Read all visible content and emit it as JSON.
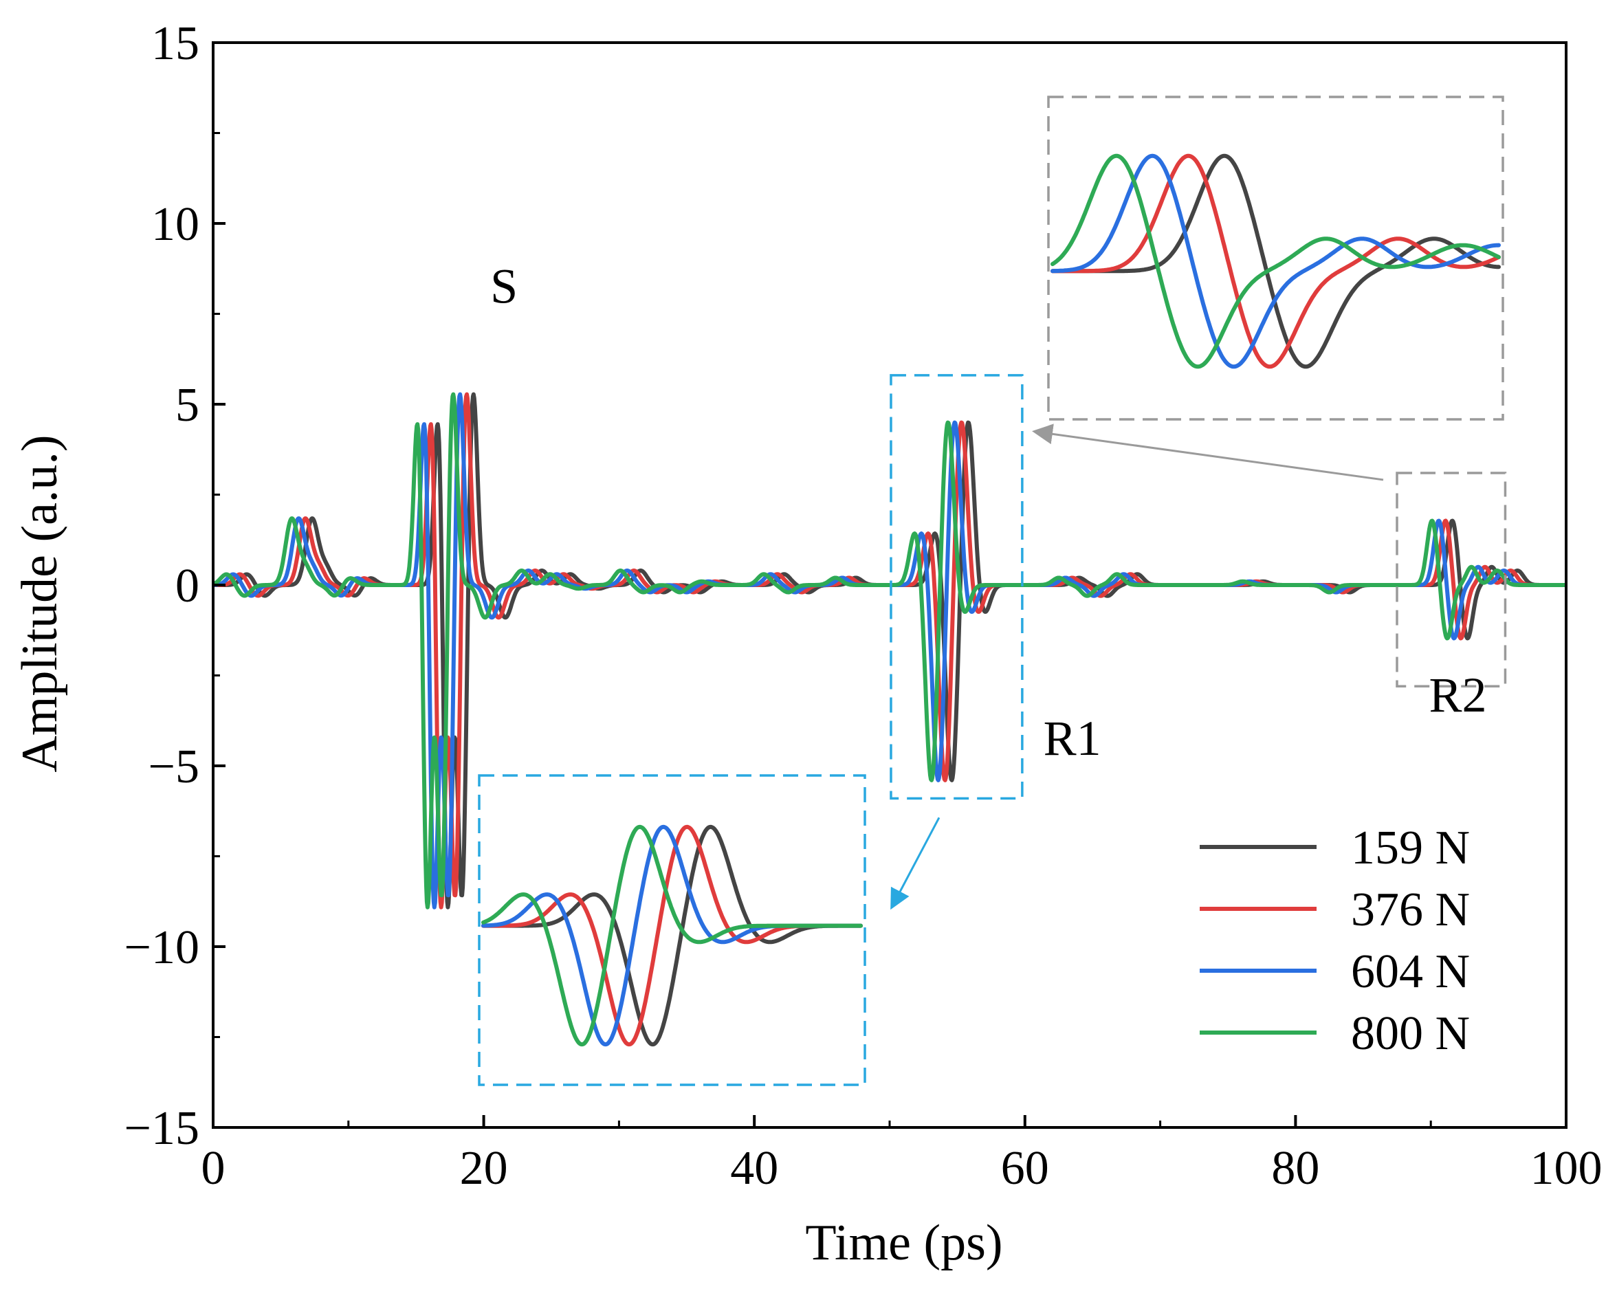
{
  "chart_data": {
    "type": "line",
    "xlabel": "Time (ps)",
    "ylabel": "Amplitude (a.u.)",
    "xlim": [
      0,
      100
    ],
    "ylim": [
      -15,
      15
    ],
    "xticks": [
      0,
      20,
      40,
      60,
      80,
      100
    ],
    "yticks": [
      -15,
      -10,
      -5,
      0,
      5,
      10,
      15
    ],
    "xtick_labels": [
      "0",
      "20",
      "40",
      "60",
      "80",
      "100"
    ],
    "ytick_labels": [
      "−15",
      "−10",
      "−5",
      "0",
      "5",
      "10",
      "15"
    ],
    "legend_position": "bottom-right",
    "series": [
      {
        "name": "159 N",
        "color": "#444444",
        "shift": 0.0
      },
      {
        "name": "376 N",
        "color": "#e03c3c",
        "shift": -0.5
      },
      {
        "name": "604 N",
        "color": "#2a6fe0",
        "shift": -1.0
      },
      {
        "name": "800 N",
        "color": "#2eaa55",
        "shift": -1.5
      }
    ],
    "features": [
      {
        "label": "S",
        "peaks": [
          [
            16.7,
            5.6
          ],
          [
            17.3,
            -9.7
          ],
          [
            18.4,
            -8.8
          ],
          [
            19.2,
            5.6
          ]
        ]
      },
      {
        "label": "R1",
        "peaks": [
          [
            53.4,
            1.5
          ],
          [
            54.6,
            -5.5
          ],
          [
            55.8,
            4.6
          ],
          [
            57.0,
            -0.8
          ]
        ]
      },
      {
        "label": "R2",
        "peaks": [
          [
            91.6,
            1.8
          ],
          [
            92.7,
            -1.5
          ],
          [
            94.5,
            0.5
          ]
        ]
      }
    ],
    "annotations": [
      {
        "text": "S",
        "x": 21.5,
        "y": 7.8
      },
      {
        "text": "R1",
        "x": 63.5,
        "y": -4.7
      },
      {
        "text": "R2",
        "x": 92.0,
        "y": -3.5
      }
    ],
    "zoom_regions": [
      {
        "name": "R1",
        "color": "#29a8e0",
        "x_range": [
          50.1,
          59.8
        ],
        "y_range": [
          -5.9,
          5.8
        ]
      },
      {
        "name": "R2",
        "color": "#9a9a9a",
        "x_range": [
          87.5,
          95.5
        ],
        "y_range": [
          -2.8,
          3.1
        ]
      }
    ]
  }
}
